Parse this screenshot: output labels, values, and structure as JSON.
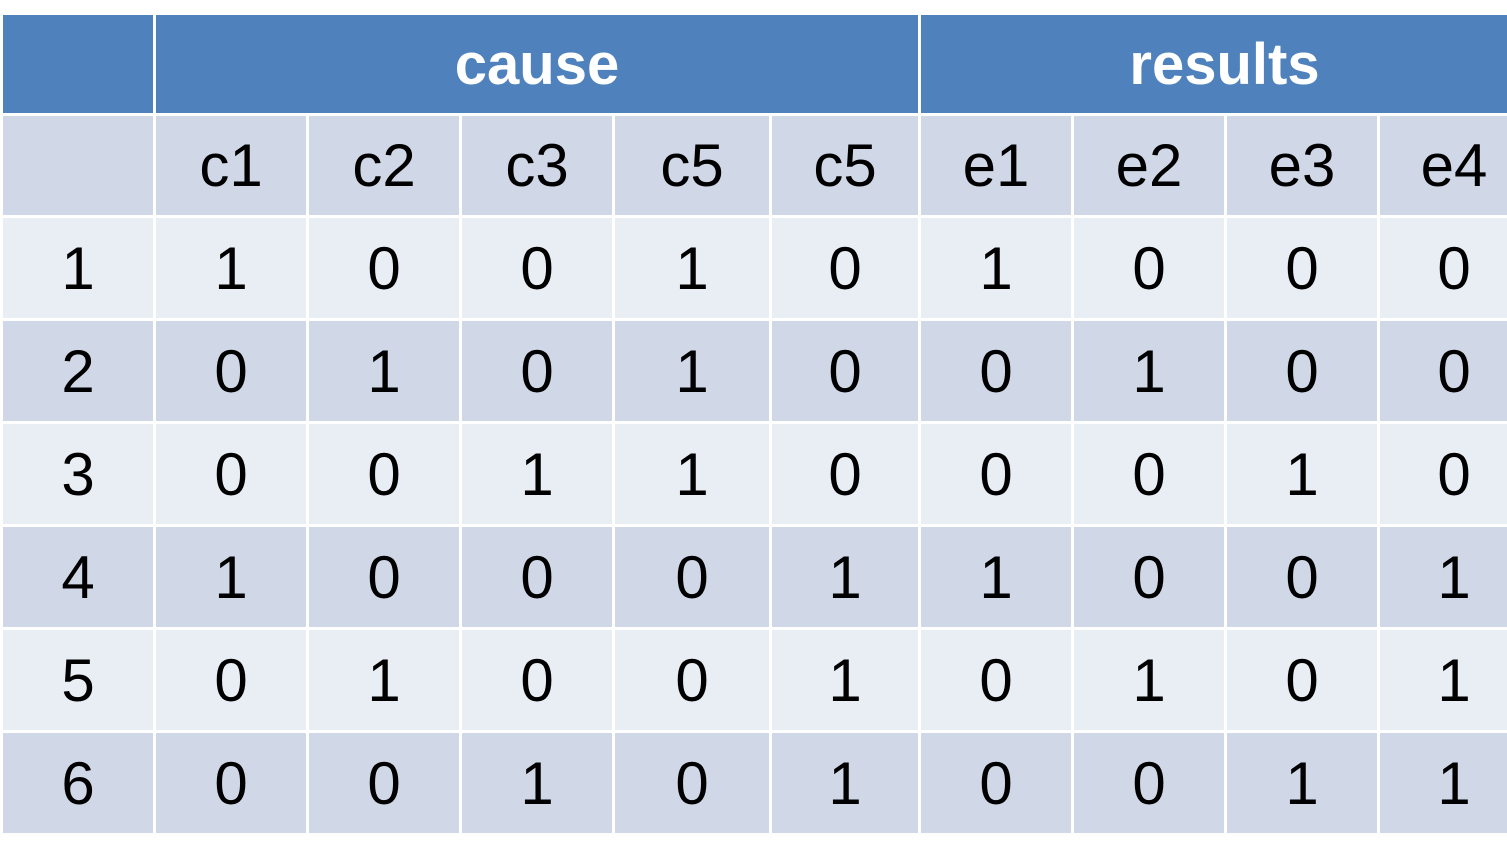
{
  "table": {
    "group_headers": [
      {
        "label": "",
        "span": 1
      },
      {
        "label": "cause",
        "span": 5
      },
      {
        "label": "results",
        "span": 4
      }
    ],
    "column_headers": [
      "",
      "c1",
      "c2",
      "c3",
      "c5",
      "c5",
      "e1",
      "e2",
      "e3",
      "e4"
    ],
    "rows": [
      [
        "1",
        "1",
        "0",
        "0",
        "1",
        "0",
        "1",
        "0",
        "0",
        "0"
      ],
      [
        "2",
        "0",
        "1",
        "0",
        "1",
        "0",
        "0",
        "1",
        "0",
        "0"
      ],
      [
        "3",
        "0",
        "0",
        "1",
        "1",
        "0",
        "0",
        "0",
        "1",
        "0"
      ],
      [
        "4",
        "1",
        "0",
        "0",
        "0",
        "1",
        "1",
        "0",
        "0",
        "1"
      ],
      [
        "5",
        "0",
        "1",
        "0",
        "0",
        "1",
        "0",
        "1",
        "0",
        "1"
      ],
      [
        "6",
        "0",
        "0",
        "1",
        "0",
        "1",
        "0",
        "0",
        "1",
        "1"
      ]
    ],
    "colors": {
      "header_bg": "#4f81bd",
      "header_text": "#ffffff",
      "row_dark": "#d0d8e8",
      "row_light": "#e9edf4"
    }
  }
}
